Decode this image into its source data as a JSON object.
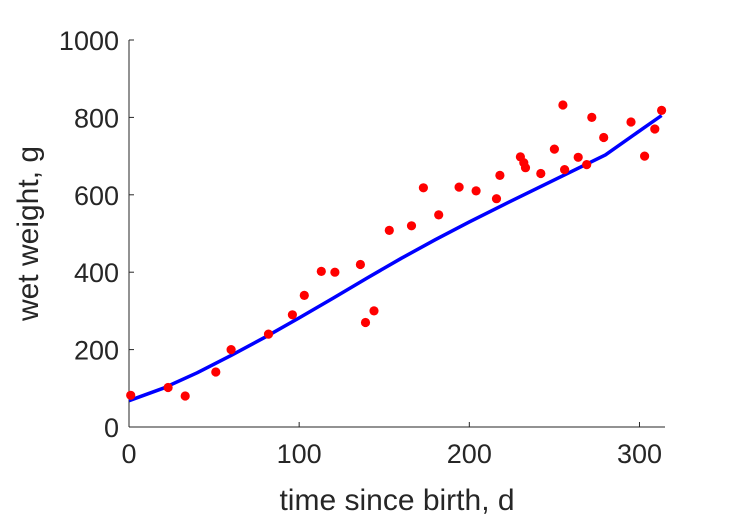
{
  "chart_data": {
    "type": "scatter",
    "title": "",
    "xlabel": "time since birth, d",
    "ylabel": "wet weight, g",
    "xlim": [
      0,
      315
    ],
    "ylim": [
      0,
      1000
    ],
    "xticks": [
      0,
      100,
      200,
      300
    ],
    "yticks": [
      0,
      200,
      400,
      600,
      800,
      1000
    ],
    "grid": false,
    "legend": "none",
    "colors": {
      "points": "#ff0000",
      "fit": "#0000ff",
      "axes": "#262626"
    },
    "series": [
      {
        "kind": "points",
        "x": [
          1,
          23,
          33,
          51,
          60,
          82,
          96,
          103,
          113,
          121,
          136,
          139,
          144,
          153,
          166,
          173,
          182,
          194,
          204,
          216,
          218,
          230,
          232,
          233,
          242,
          250,
          255,
          256,
          264,
          269,
          272,
          279,
          295,
          303,
          309,
          313
        ],
        "y": [
          82,
          102,
          80,
          142,
          200,
          240,
          290,
          340,
          402,
          400,
          420,
          270,
          300,
          508,
          520,
          618,
          548,
          620,
          610,
          590,
          650,
          698,
          683,
          670,
          655,
          718,
          832,
          665,
          697,
          678,
          800,
          748,
          788,
          700,
          770,
          818
        ]
      },
      {
        "kind": "line",
        "x": [
          0,
          20,
          40,
          60,
          80,
          100,
          120,
          140,
          160,
          180,
          200,
          220,
          240,
          260,
          280,
          300,
          313
        ],
        "y": [
          68,
          100,
          140,
          185,
          232,
          282,
          333,
          385,
          436,
          484,
          530,
          574,
          617,
          660,
          703,
          765,
          805
        ]
      }
    ]
  }
}
